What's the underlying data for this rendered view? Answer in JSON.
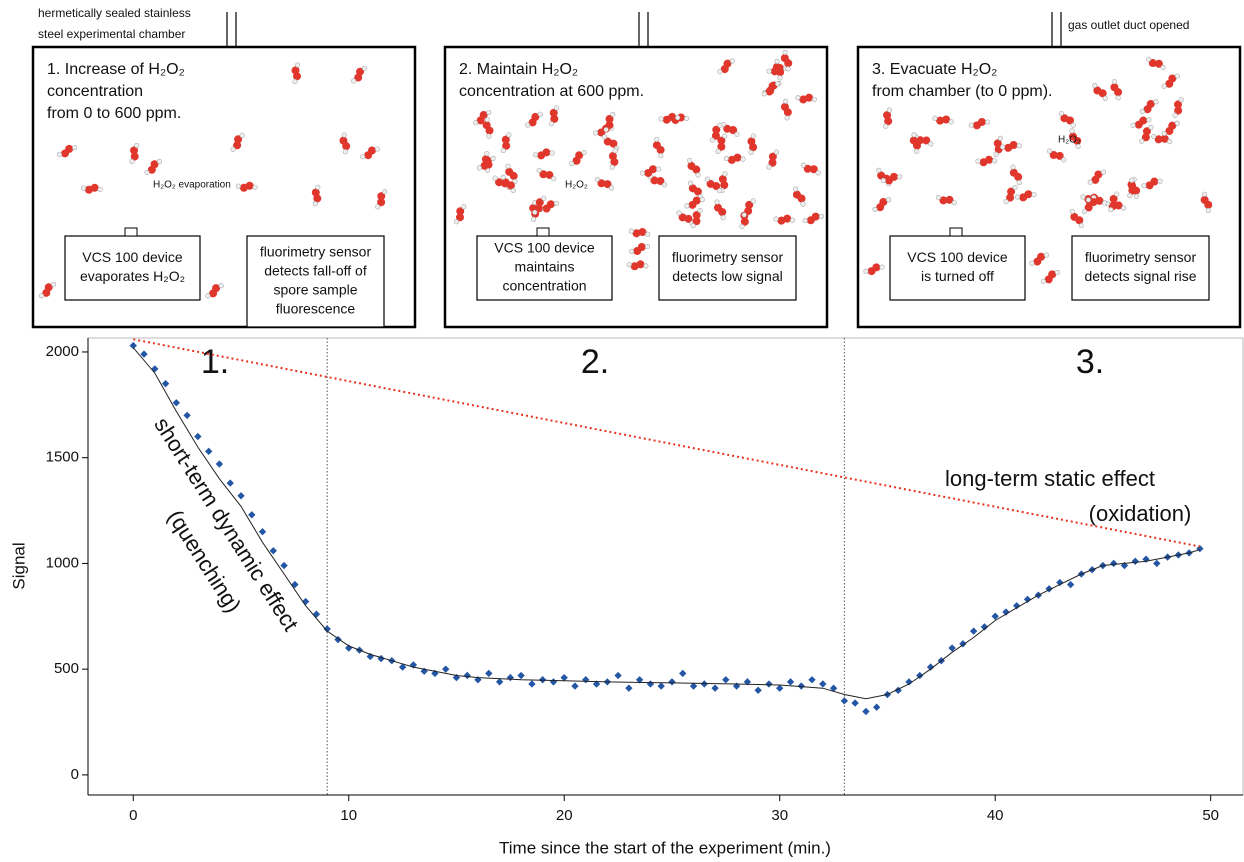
{
  "header": {
    "chamber_label": [
      "hermetically sealed stainless",
      "steel experimental chamber"
    ],
    "outlet_label": "gas outlet duct opened"
  },
  "panels": [
    {
      "title": [
        "1. Increase of H₂O₂",
        "concentration",
        "from 0 to 600 ppm."
      ],
      "gas_label": "H₂O₂ evaporation",
      "device": [
        "VCS 100 device",
        "evaporates H₂O₂"
      ],
      "sensor": [
        "fluorimetry sensor",
        "detects fall-off of",
        "spore sample",
        "fluorescence"
      ]
    },
    {
      "title": [
        "2. Maintain H₂O₂",
        "concentration at 600 ppm."
      ],
      "gas_label": "H₂O₂",
      "device": [
        "VCS 100 device",
        "maintains",
        "concentration"
      ],
      "sensor": [
        "fluorimetry sensor",
        "detects low signal"
      ]
    },
    {
      "title": [
        "3. Evacuate H₂O₂",
        "from chamber (to 0 ppm)."
      ],
      "gas_label": "H₂O₂",
      "device": [
        "VCS 100 device",
        "is turned off"
      ],
      "sensor": [
        "fluorimetry sensor",
        "detects signal rise"
      ]
    }
  ],
  "chart_data": {
    "type": "scatter",
    "xlabel": "Time since the start of the experiment (min.)",
    "ylabel": "Signal",
    "xlim": [
      -2.1,
      51.5
    ],
    "ylim": [
      -95,
      2066
    ],
    "xticks": [
      0,
      10,
      20,
      30,
      40,
      50
    ],
    "yticks": [
      0,
      500,
      1000,
      1500,
      2000
    ],
    "phases": [
      "1.",
      "2.",
      "3."
    ],
    "vlines": [
      9,
      33
    ],
    "annotations": [
      "short-term dynamic effect",
      "(quenching)",
      "long-term static effect",
      "(oxidation)"
    ],
    "series": [
      {
        "type": "scatter",
        "color": "#2456a6",
        "x": [
          0,
          0.5,
          1,
          1.5,
          2,
          2.5,
          3,
          3.5,
          4,
          4.5,
          5,
          5.5,
          6,
          6.5,
          7,
          7.5,
          8,
          8.5,
          9,
          9.5,
          10,
          10.5,
          11,
          11.5,
          12,
          12.5,
          13,
          13.5,
          14,
          14.5,
          15,
          15.5,
          16,
          16.5,
          17,
          17.5,
          18,
          18.5,
          19,
          19.5,
          20,
          20.5,
          21,
          21.5,
          22,
          22.5,
          23,
          23.5,
          24,
          24.5,
          25,
          25.5,
          26,
          26.5,
          27,
          27.5,
          28,
          28.5,
          29,
          29.5,
          30,
          30.5,
          31,
          31.5,
          32,
          32.5,
          33,
          33.5,
          34,
          34.5,
          35,
          35.5,
          36,
          36.5,
          37,
          37.5,
          38,
          38.5,
          39,
          39.5,
          40,
          40.5,
          41,
          41.5,
          42,
          42.5,
          43,
          43.5,
          44,
          44.5,
          45,
          45.5,
          46,
          46.5,
          47,
          47.5,
          48,
          48.5,
          49,
          49.5
        ],
        "values": [
          2030,
          1990,
          1920,
          1850,
          1760,
          1700,
          1600,
          1530,
          1470,
          1380,
          1320,
          1230,
          1150,
          1060,
          990,
          900,
          820,
          760,
          690,
          640,
          600,
          590,
          560,
          550,
          540,
          510,
          520,
          490,
          480,
          500,
          460,
          470,
          450,
          480,
          440,
          460,
          470,
          430,
          450,
          440,
          460,
          420,
          450,
          430,
          440,
          470,
          410,
          450,
          430,
          420,
          440,
          480,
          420,
          430,
          410,
          450,
          420,
          440,
          400,
          430,
          410,
          440,
          420,
          450,
          430,
          410,
          350,
          340,
          300,
          320,
          380,
          400,
          440,
          470,
          510,
          540,
          600,
          620,
          680,
          700,
          750,
          770,
          800,
          830,
          850,
          880,
          910,
          900,
          950,
          970,
          990,
          1000,
          990,
          1010,
          1020,
          1000,
          1030,
          1040,
          1050,
          1070
        ]
      },
      {
        "type": "line",
        "color": "#222222",
        "x": [
          0,
          1,
          2,
          3,
          4,
          5,
          6,
          7,
          8,
          9,
          10,
          11,
          12,
          13,
          14,
          15,
          16,
          18,
          20,
          22,
          25,
          28,
          30,
          32,
          33,
          34,
          35,
          36,
          37,
          38,
          39,
          40,
          41,
          42,
          43,
          44,
          45,
          46,
          47,
          48,
          49,
          49.5
        ],
        "values": [
          2020,
          1900,
          1720,
          1550,
          1400,
          1270,
          1100,
          950,
          800,
          680,
          610,
          570,
          540,
          510,
          490,
          470,
          460,
          450,
          445,
          440,
          435,
          430,
          425,
          410,
          380,
          360,
          380,
          430,
          500,
          580,
          650,
          730,
          790,
          850,
          900,
          950,
          990,
          1000,
          1010,
          1030,
          1050,
          1065
        ]
      },
      {
        "type": "dotted",
        "color": "#e8321e",
        "x": [
          0,
          49.5
        ],
        "values": [
          2060,
          1080
        ]
      }
    ]
  }
}
